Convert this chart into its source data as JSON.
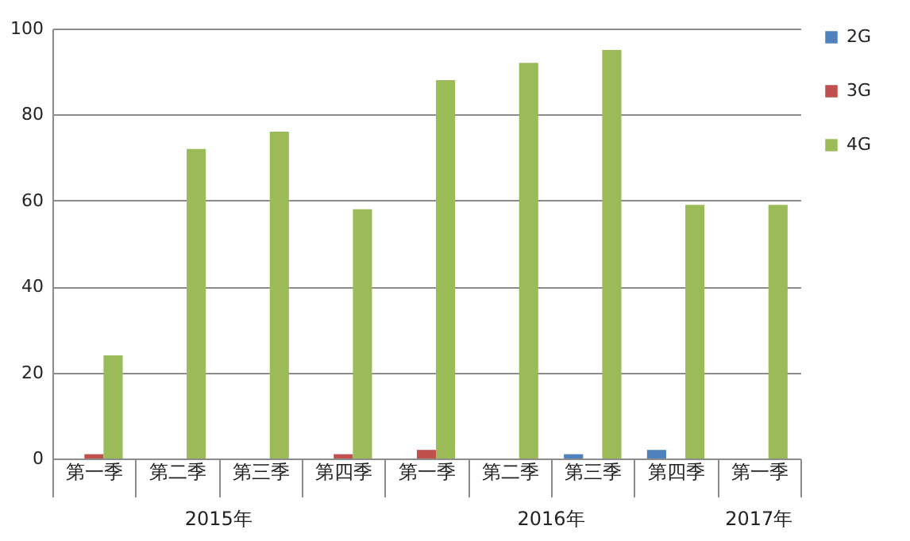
{
  "chart_data": {
    "type": "bar",
    "categories": [
      "第一季",
      "第二季",
      "第三季",
      "第四季",
      "第一季",
      "第二季",
      "第三季",
      "第四季",
      "第一季"
    ],
    "series": [
      {
        "name": "2G",
        "color": "#4f81bd",
        "values": [
          0,
          0,
          0,
          0,
          0,
          0,
          1,
          2,
          0
        ]
      },
      {
        "name": "3G",
        "color": "#c0504d",
        "values": [
          1,
          0,
          0,
          1,
          2,
          0,
          0,
          0,
          0
        ]
      },
      {
        "name": "4G",
        "color": "#9bbb59",
        "values": [
          24,
          72,
          76,
          58,
          88,
          92,
          95,
          59,
          59
        ]
      }
    ],
    "annotations": [
      "2015年",
      "2016年",
      "2017年"
    ],
    "ylim": [
      0,
      100
    ],
    "yticks": [
      0,
      20,
      40,
      60,
      80,
      100
    ],
    "grid": "y",
    "legend": "right"
  }
}
